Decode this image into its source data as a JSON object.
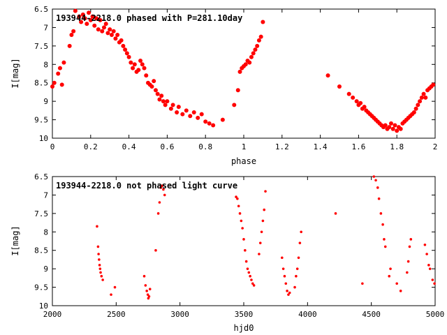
{
  "colors": {
    "points": "#ff0000",
    "axes": "#000000",
    "background": "#ffffff"
  },
  "chart_data": [
    {
      "type": "scatter",
      "title": "193944-2218.0 phased with P=281.10day",
      "xlabel": "phase",
      "ylabel": "I[mag]",
      "xlim": [
        0,
        2
      ],
      "ylim": [
        6.5,
        10
      ],
      "y_inverted": true,
      "grid": false,
      "marker": "filled-dot-large",
      "xticks": [
        {
          "v": 0,
          "label": "0"
        },
        {
          "v": 0.2,
          "label": "0.2"
        },
        {
          "v": 0.4,
          "label": "0.4"
        },
        {
          "v": 0.6,
          "label": "0.6"
        },
        {
          "v": 0.8,
          "label": "0.8"
        },
        {
          "v": 1,
          "label": "1"
        },
        {
          "v": 1.2,
          "label": "1.2"
        },
        {
          "v": 1.4,
          "label": "1.4"
        },
        {
          "v": 1.6,
          "label": "1.6"
        },
        {
          "v": 1.8,
          "label": "1.8"
        },
        {
          "v": 2,
          "label": "2"
        }
      ],
      "yticks": [
        {
          "v": 6.5,
          "label": "6.5"
        },
        {
          "v": 7,
          "label": "7"
        },
        {
          "v": 7.5,
          "label": "7.5"
        },
        {
          "v": 8,
          "label": "8"
        },
        {
          "v": 8.5,
          "label": "8.5"
        },
        {
          "v": 9,
          "label": "9"
        },
        {
          "v": 9.5,
          "label": "9.5"
        },
        {
          "v": 10,
          "label": "10"
        }
      ],
      "points": [
        [
          0.0,
          8.6
        ],
        [
          0.01,
          8.5
        ],
        [
          0.03,
          8.25
        ],
        [
          0.04,
          8.1
        ],
        [
          0.05,
          8.55
        ],
        [
          0.06,
          7.95
        ],
        [
          0.09,
          7.5
        ],
        [
          0.1,
          7.2
        ],
        [
          0.11,
          7.1
        ],
        [
          0.12,
          6.55
        ],
        [
          0.14,
          6.7
        ],
        [
          0.15,
          6.85
        ],
        [
          0.16,
          6.65
        ],
        [
          0.17,
          6.75
        ],
        [
          0.18,
          6.9
        ],
        [
          0.19,
          6.6
        ],
        [
          0.2,
          6.8
        ],
        [
          0.21,
          6.7
        ],
        [
          0.22,
          6.95
        ],
        [
          0.23,
          6.75
        ],
        [
          0.24,
          7.05
        ],
        [
          0.25,
          6.8
        ],
        [
          0.26,
          7.1
        ],
        [
          0.27,
          7.0
        ],
        [
          0.28,
          6.9
        ],
        [
          0.29,
          7.15
        ],
        [
          0.3,
          7.05
        ],
        [
          0.31,
          7.2
        ],
        [
          0.32,
          7.1
        ],
        [
          0.33,
          7.3
        ],
        [
          0.34,
          7.2
        ],
        [
          0.35,
          7.4
        ],
        [
          0.36,
          7.35
        ],
        [
          0.37,
          7.5
        ],
        [
          0.38,
          7.6
        ],
        [
          0.39,
          7.7
        ],
        [
          0.4,
          7.8
        ],
        [
          0.41,
          7.95
        ],
        [
          0.42,
          8.1
        ],
        [
          0.43,
          8.0
        ],
        [
          0.44,
          8.2
        ],
        [
          0.45,
          8.15
        ],
        [
          0.46,
          7.9
        ],
        [
          0.47,
          8.0
        ],
        [
          0.48,
          8.1
        ],
        [
          0.49,
          8.3
        ],
        [
          0.5,
          8.5
        ],
        [
          0.51,
          8.55
        ],
        [
          0.52,
          8.6
        ],
        [
          0.53,
          8.45
        ],
        [
          0.54,
          8.7
        ],
        [
          0.55,
          8.8
        ],
        [
          0.56,
          8.95
        ],
        [
          0.57,
          8.85
        ],
        [
          0.58,
          9.0
        ],
        [
          0.59,
          9.1
        ],
        [
          0.6,
          9.0
        ],
        [
          0.62,
          9.2
        ],
        [
          0.63,
          9.1
        ],
        [
          0.65,
          9.3
        ],
        [
          0.66,
          9.15
        ],
        [
          0.68,
          9.35
        ],
        [
          0.7,
          9.25
        ],
        [
          0.72,
          9.4
        ],
        [
          0.74,
          9.3
        ],
        [
          0.76,
          9.45
        ],
        [
          0.78,
          9.35
        ],
        [
          0.8,
          9.55
        ],
        [
          0.82,
          9.6
        ],
        [
          0.84,
          9.65
        ],
        [
          0.89,
          9.5
        ],
        [
          0.95,
          9.1
        ],
        [
          0.97,
          8.7
        ],
        [
          0.98,
          8.2
        ],
        [
          0.99,
          8.1
        ],
        [
          1.0,
          8.05
        ],
        [
          1.01,
          8.0
        ],
        [
          1.02,
          7.9
        ],
        [
          1.03,
          7.95
        ],
        [
          1.04,
          7.8
        ],
        [
          1.05,
          7.7
        ],
        [
          1.06,
          7.6
        ],
        [
          1.07,
          7.5
        ],
        [
          1.08,
          7.35
        ],
        [
          1.09,
          7.25
        ],
        [
          1.1,
          6.85
        ],
        [
          1.44,
          8.3
        ],
        [
          1.5,
          8.6
        ],
        [
          1.55,
          8.8
        ],
        [
          1.57,
          8.9
        ],
        [
          1.59,
          9.0
        ],
        [
          1.6,
          9.1
        ],
        [
          1.61,
          9.05
        ],
        [
          1.62,
          9.2
        ],
        [
          1.63,
          9.15
        ],
        [
          1.64,
          9.25
        ],
        [
          1.65,
          9.3
        ],
        [
          1.66,
          9.35
        ],
        [
          1.67,
          9.4
        ],
        [
          1.68,
          9.45
        ],
        [
          1.69,
          9.5
        ],
        [
          1.7,
          9.55
        ],
        [
          1.71,
          9.6
        ],
        [
          1.72,
          9.65
        ],
        [
          1.73,
          9.7
        ],
        [
          1.74,
          9.65
        ],
        [
          1.75,
          9.75
        ],
        [
          1.76,
          9.7
        ],
        [
          1.77,
          9.6
        ],
        [
          1.78,
          9.75
        ],
        [
          1.79,
          9.65
        ],
        [
          1.8,
          9.8
        ],
        [
          1.81,
          9.7
        ],
        [
          1.82,
          9.75
        ],
        [
          1.83,
          9.6
        ],
        [
          1.84,
          9.55
        ],
        [
          1.85,
          9.5
        ],
        [
          1.86,
          9.45
        ],
        [
          1.87,
          9.4
        ],
        [
          1.88,
          9.35
        ],
        [
          1.89,
          9.3
        ],
        [
          1.9,
          9.2
        ],
        [
          1.91,
          9.1
        ],
        [
          1.92,
          9.0
        ],
        [
          1.93,
          8.9
        ],
        [
          1.94,
          8.8
        ],
        [
          1.95,
          8.9
        ],
        [
          1.96,
          8.7
        ],
        [
          1.97,
          8.65
        ],
        [
          1.98,
          8.6
        ],
        [
          1.99,
          8.55
        ]
      ]
    },
    {
      "type": "scatter",
      "title": "193944-2218.0 not phased light curve",
      "xlabel": "hjd0",
      "ylabel": "I[mag]",
      "xlim": [
        2000,
        5000
      ],
      "ylim": [
        6.5,
        10
      ],
      "y_inverted": true,
      "grid": false,
      "marker": "small-dot",
      "xticks": [
        {
          "v": 2000,
          "label": "2000"
        },
        {
          "v": 2500,
          "label": "2500"
        },
        {
          "v": 3000,
          "label": "3000"
        },
        {
          "v": 3500,
          "label": "3500"
        },
        {
          "v": 4000,
          "label": "4000"
        },
        {
          "v": 4500,
          "label": "4500"
        },
        {
          "v": 5000,
          "label": "5000"
        }
      ],
      "yticks": [
        {
          "v": 6.5,
          "label": "6.5"
        },
        {
          "v": 7,
          "label": "7"
        },
        {
          "v": 7.5,
          "label": "7.5"
        },
        {
          "v": 8,
          "label": "8"
        },
        {
          "v": 8.5,
          "label": "8.5"
        },
        {
          "v": 9,
          "label": "9"
        },
        {
          "v": 9.5,
          "label": "9.5"
        },
        {
          "v": 10,
          "label": "10"
        }
      ],
      "points": [
        [
          2350,
          7.85
        ],
        [
          2358,
          8.4
        ],
        [
          2362,
          8.6
        ],
        [
          2366,
          8.75
        ],
        [
          2370,
          8.9
        ],
        [
          2374,
          9.0
        ],
        [
          2378,
          9.1
        ],
        [
          2385,
          9.2
        ],
        [
          2395,
          9.3
        ],
        [
          2460,
          9.7
        ],
        [
          2490,
          9.5
        ],
        [
          2720,
          9.2
        ],
        [
          2730,
          9.45
        ],
        [
          2740,
          9.6
        ],
        [
          2748,
          9.7
        ],
        [
          2752,
          9.8
        ],
        [
          2758,
          9.75
        ],
        [
          2765,
          9.55
        ],
        [
          2810,
          8.5
        ],
        [
          2830,
          7.5
        ],
        [
          2840,
          7.2
        ],
        [
          2850,
          6.8
        ],
        [
          2860,
          6.75
        ],
        [
          2870,
          6.85
        ],
        [
          2880,
          7.0
        ],
        [
          3440,
          7.05
        ],
        [
          3450,
          7.1
        ],
        [
          3460,
          7.3
        ],
        [
          3470,
          7.5
        ],
        [
          3480,
          7.7
        ],
        [
          3490,
          7.9
        ],
        [
          3500,
          8.2
        ],
        [
          3510,
          8.5
        ],
        [
          3520,
          8.8
        ],
        [
          3530,
          9.0
        ],
        [
          3540,
          9.1
        ],
        [
          3550,
          9.2
        ],
        [
          3560,
          9.3
        ],
        [
          3570,
          9.4
        ],
        [
          3580,
          9.45
        ],
        [
          3620,
          8.6
        ],
        [
          3630,
          8.3
        ],
        [
          3640,
          8.0
        ],
        [
          3650,
          7.7
        ],
        [
          3660,
          7.4
        ],
        [
          3670,
          6.9
        ],
        [
          3800,
          8.7
        ],
        [
          3810,
          9.0
        ],
        [
          3820,
          9.2
        ],
        [
          3830,
          9.4
        ],
        [
          3840,
          9.6
        ],
        [
          3850,
          9.7
        ],
        [
          3860,
          9.65
        ],
        [
          3900,
          9.5
        ],
        [
          3910,
          9.2
        ],
        [
          3920,
          9.0
        ],
        [
          3930,
          8.7
        ],
        [
          3940,
          8.3
        ],
        [
          3950,
          8.0
        ],
        [
          4220,
          7.5
        ],
        [
          4430,
          9.4
        ],
        [
          4520,
          6.5
        ],
        [
          4535,
          6.6
        ],
        [
          4550,
          6.8
        ],
        [
          4560,
          7.1
        ],
        [
          4575,
          7.5
        ],
        [
          4590,
          7.8
        ],
        [
          4600,
          8.2
        ],
        [
          4610,
          8.4
        ],
        [
          4640,
          9.2
        ],
        [
          4650,
          9.0
        ],
        [
          4700,
          9.4
        ],
        [
          4730,
          9.6
        ],
        [
          4780,
          9.1
        ],
        [
          4790,
          8.8
        ],
        [
          4800,
          8.4
        ],
        [
          4810,
          8.2
        ],
        [
          4920,
          8.35
        ],
        [
          4935,
          8.6
        ],
        [
          4950,
          8.9
        ],
        [
          4960,
          9.0
        ],
        [
          4980,
          9.3
        ],
        [
          4995,
          9.4
        ]
      ]
    }
  ]
}
